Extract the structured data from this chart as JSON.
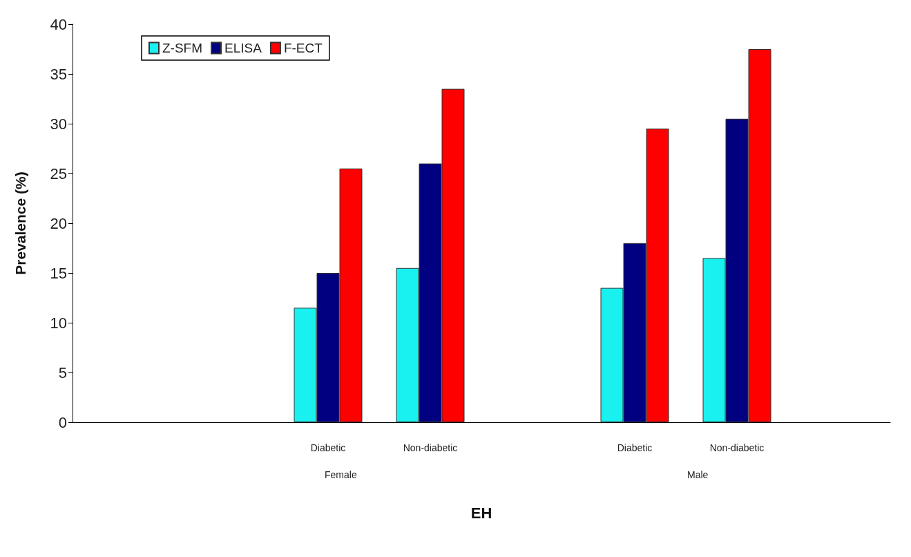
{
  "chart_data": {
    "type": "bar",
    "xlabel": "EH",
    "ylabel": "Prevalence (%)",
    "categories": [
      null,
      null,
      "Diabetic",
      "Non-diabetic",
      null,
      "Diabetic",
      "Non-diabetic",
      null
    ],
    "series": [
      {
        "name": "Z-SFM",
        "color": "#19f0f0",
        "values": [
          null,
          null,
          11.5,
          15.5,
          null,
          13.5,
          16.5,
          null
        ]
      },
      {
        "name": "ELISA",
        "color": "#000080",
        "values": [
          null,
          null,
          15,
          26,
          null,
          18,
          30.5,
          null
        ]
      },
      {
        "name": "F-ECT",
        "color": "#ff0000",
        "values": [
          null,
          null,
          25.5,
          33.5,
          null,
          29.5,
          37.5,
          null
        ]
      }
    ],
    "ylim": [
      0,
      40
    ],
    "yticks": [
      0,
      5,
      10,
      15,
      20,
      25,
      30,
      35,
      40
    ],
    "grid": false,
    "legend": "top left",
    "annotations": [
      "Female",
      "Male"
    ]
  }
}
